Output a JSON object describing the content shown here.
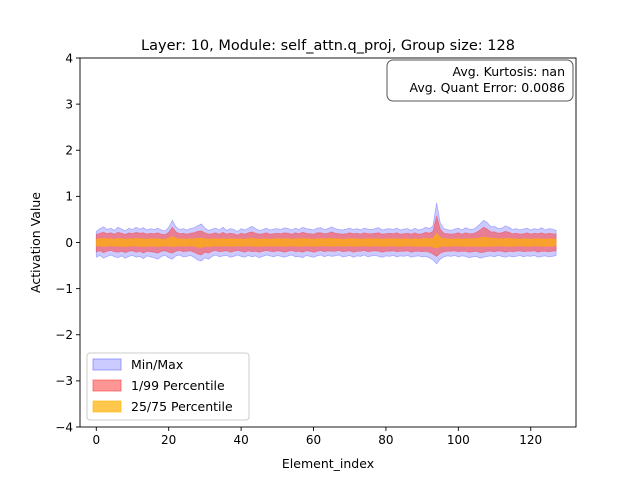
{
  "chart_data": {
    "type": "area",
    "title": "Layer: 10, Module: self_attn.q_proj,  Group size: 128",
    "xlabel": "Element_index",
    "ylabel": "Activation Value",
    "xlim": [
      -4.5,
      132.5
    ],
    "ylim": [
      -4,
      4
    ],
    "x_ticks": [
      0,
      20,
      40,
      60,
      80,
      100,
      120
    ],
    "y_ticks": [
      -4,
      -3,
      -2,
      -1,
      0,
      1,
      2,
      3,
      4
    ],
    "x_tick_labels": [
      "0",
      "20",
      "40",
      "60",
      "80",
      "100",
      "120"
    ],
    "y_tick_labels": [
      "−4",
      "−3",
      "−2",
      "−1",
      "0",
      "1",
      "2",
      "3",
      "4"
    ],
    "grid": false,
    "legend_position": "lower-left",
    "annotation": [
      "Avg. Kurtosis: nan",
      "Avg. Quant Error: 0.0086"
    ],
    "series": [
      {
        "name": "Min/Max",
        "color": "#6b6bff",
        "upper": [
          0.24,
          0.3,
          0.34,
          0.28,
          0.31,
          0.26,
          0.33,
          0.29,
          0.25,
          0.31,
          0.28,
          0.33,
          0.29,
          0.32,
          0.27,
          0.3,
          0.28,
          0.31,
          0.27,
          0.25,
          0.33,
          0.48,
          0.34,
          0.28,
          0.3,
          0.27,
          0.3,
          0.32,
          0.36,
          0.4,
          0.31,
          0.26,
          0.29,
          0.31,
          0.27,
          0.33,
          0.26,
          0.3,
          0.28,
          0.24,
          0.3,
          0.27,
          0.31,
          0.35,
          0.3,
          0.26,
          0.28,
          0.31,
          0.27,
          0.29,
          0.3,
          0.28,
          0.32,
          0.3,
          0.27,
          0.31,
          0.28,
          0.33,
          0.3,
          0.29,
          0.27,
          0.31,
          0.32,
          0.28,
          0.3,
          0.34,
          0.3,
          0.28,
          0.27,
          0.29,
          0.31,
          0.28,
          0.3,
          0.27,
          0.31,
          0.29,
          0.28,
          0.3,
          0.32,
          0.27,
          0.29,
          0.3,
          0.28,
          0.31,
          0.27,
          0.29,
          0.3,
          0.26,
          0.31,
          0.27,
          0.29,
          0.33,
          0.3,
          0.36,
          0.86,
          0.42,
          0.3,
          0.28,
          0.26,
          0.29,
          0.31,
          0.27,
          0.32,
          0.29,
          0.28,
          0.33,
          0.4,
          0.48,
          0.43,
          0.34,
          0.35,
          0.3,
          0.31,
          0.36,
          0.33,
          0.28,
          0.3,
          0.27,
          0.29,
          0.31,
          0.27,
          0.3,
          0.28,
          0.32,
          0.27,
          0.3,
          0.29,
          0.26
        ],
        "lower": [
          -0.32,
          -0.28,
          -0.34,
          -0.3,
          -0.27,
          -0.31,
          -0.33,
          -0.29,
          -0.34,
          -0.3,
          -0.28,
          -0.32,
          -0.3,
          -0.35,
          -0.29,
          -0.31,
          -0.33,
          -0.36,
          -0.3,
          -0.28,
          -0.33,
          -0.36,
          -0.29,
          -0.27,
          -0.31,
          -0.3,
          -0.28,
          -0.32,
          -0.38,
          -0.4,
          -0.33,
          -0.36,
          -0.3,
          -0.27,
          -0.31,
          -0.29,
          -0.28,
          -0.32,
          -0.3,
          -0.27,
          -0.3,
          -0.32,
          -0.28,
          -0.31,
          -0.29,
          -0.33,
          -0.3,
          -0.27,
          -0.29,
          -0.31,
          -0.28,
          -0.3,
          -0.32,
          -0.29,
          -0.27,
          -0.31,
          -0.3,
          -0.33,
          -0.28,
          -0.3,
          -0.32,
          -0.29,
          -0.27,
          -0.31,
          -0.28,
          -0.3,
          -0.29,
          -0.27,
          -0.31,
          -0.3,
          -0.28,
          -0.32,
          -0.29,
          -0.3,
          -0.27,
          -0.31,
          -0.29,
          -0.28,
          -0.3,
          -0.32,
          -0.29,
          -0.3,
          -0.28,
          -0.31,
          -0.29,
          -0.3,
          -0.28,
          -0.32,
          -0.3,
          -0.29,
          -0.31,
          -0.3,
          -0.33,
          -0.38,
          -0.46,
          -0.36,
          -0.31,
          -0.29,
          -0.3,
          -0.28,
          -0.31,
          -0.29,
          -0.3,
          -0.33,
          -0.31,
          -0.3,
          -0.34,
          -0.32,
          -0.3,
          -0.29,
          -0.31,
          -0.28,
          -0.3,
          -0.32,
          -0.29,
          -0.31,
          -0.3,
          -0.28,
          -0.31,
          -0.29,
          -0.3,
          -0.28,
          -0.32,
          -0.3,
          -0.29,
          -0.31,
          -0.3,
          -0.28
        ]
      },
      {
        "name": "1/99 Percentile",
        "color": "#ff4040",
        "upper": [
          0.17,
          0.2,
          0.22,
          0.19,
          0.21,
          0.18,
          0.22,
          0.2,
          0.17,
          0.21,
          0.19,
          0.22,
          0.2,
          0.21,
          0.18,
          0.2,
          0.19,
          0.21,
          0.18,
          0.17,
          0.22,
          0.33,
          0.23,
          0.19,
          0.2,
          0.18,
          0.2,
          0.21,
          0.24,
          0.25,
          0.21,
          0.18,
          0.19,
          0.21,
          0.18,
          0.22,
          0.18,
          0.2,
          0.19,
          0.16,
          0.2,
          0.18,
          0.21,
          0.23,
          0.2,
          0.18,
          0.19,
          0.21,
          0.18,
          0.19,
          0.2,
          0.19,
          0.21,
          0.2,
          0.18,
          0.21,
          0.19,
          0.22,
          0.2,
          0.19,
          0.18,
          0.21,
          0.21,
          0.19,
          0.2,
          0.23,
          0.2,
          0.19,
          0.18,
          0.19,
          0.21,
          0.19,
          0.2,
          0.18,
          0.21,
          0.19,
          0.19,
          0.2,
          0.21,
          0.18,
          0.19,
          0.2,
          0.19,
          0.21,
          0.18,
          0.19,
          0.2,
          0.18,
          0.21,
          0.18,
          0.19,
          0.22,
          0.2,
          0.24,
          0.58,
          0.29,
          0.2,
          0.19,
          0.18,
          0.19,
          0.21,
          0.18,
          0.21,
          0.19,
          0.19,
          0.22,
          0.27,
          0.33,
          0.29,
          0.23,
          0.23,
          0.2,
          0.21,
          0.24,
          0.22,
          0.19,
          0.2,
          0.18,
          0.19,
          0.21,
          0.18,
          0.2,
          0.19,
          0.21,
          0.18,
          0.2,
          0.19,
          0.18
        ],
        "lower": [
          -0.2,
          -0.18,
          -0.22,
          -0.19,
          -0.17,
          -0.2,
          -0.21,
          -0.19,
          -0.22,
          -0.19,
          -0.18,
          -0.21,
          -0.19,
          -0.23,
          -0.19,
          -0.2,
          -0.21,
          -0.23,
          -0.19,
          -0.18,
          -0.21,
          -0.23,
          -0.19,
          -0.17,
          -0.2,
          -0.19,
          -0.18,
          -0.21,
          -0.25,
          -0.27,
          -0.21,
          -0.23,
          -0.19,
          -0.17,
          -0.2,
          -0.19,
          -0.18,
          -0.21,
          -0.19,
          -0.17,
          -0.19,
          -0.21,
          -0.18,
          -0.2,
          -0.19,
          -0.21,
          -0.19,
          -0.17,
          -0.19,
          -0.2,
          -0.18,
          -0.19,
          -0.21,
          -0.19,
          -0.17,
          -0.2,
          -0.19,
          -0.21,
          -0.18,
          -0.19,
          -0.21,
          -0.19,
          -0.17,
          -0.2,
          -0.18,
          -0.19,
          -0.19,
          -0.17,
          -0.2,
          -0.19,
          -0.18,
          -0.21,
          -0.19,
          -0.19,
          -0.17,
          -0.2,
          -0.19,
          -0.18,
          -0.19,
          -0.21,
          -0.19,
          -0.19,
          -0.18,
          -0.2,
          -0.19,
          -0.19,
          -0.18,
          -0.21,
          -0.19,
          -0.19,
          -0.2,
          -0.19,
          -0.21,
          -0.25,
          -0.3,
          -0.23,
          -0.2,
          -0.19,
          -0.19,
          -0.18,
          -0.2,
          -0.19,
          -0.19,
          -0.21,
          -0.2,
          -0.19,
          -0.22,
          -0.21,
          -0.19,
          -0.19,
          -0.2,
          -0.18,
          -0.19,
          -0.21,
          -0.19,
          -0.2,
          -0.19,
          -0.18,
          -0.2,
          -0.19,
          -0.19,
          -0.18,
          -0.21,
          -0.19,
          -0.19,
          -0.2,
          -0.19,
          -0.18
        ]
      },
      {
        "name": "25/75 Percentile",
        "color": "#ffb000",
        "upper": [
          0.07,
          0.08,
          0.09,
          0.08,
          0.08,
          0.07,
          0.09,
          0.08,
          0.07,
          0.08,
          0.08,
          0.09,
          0.08,
          0.08,
          0.07,
          0.08,
          0.08,
          0.08,
          0.07,
          0.07,
          0.09,
          0.13,
          0.09,
          0.08,
          0.08,
          0.07,
          0.08,
          0.08,
          0.09,
          0.1,
          0.08,
          0.07,
          0.08,
          0.08,
          0.07,
          0.09,
          0.07,
          0.08,
          0.08,
          0.07,
          0.08,
          0.07,
          0.08,
          0.09,
          0.08,
          0.07,
          0.08,
          0.08,
          0.07,
          0.08,
          0.08,
          0.08,
          0.08,
          0.08,
          0.07,
          0.08,
          0.08,
          0.09,
          0.08,
          0.08,
          0.07,
          0.08,
          0.08,
          0.08,
          0.08,
          0.09,
          0.08,
          0.08,
          0.07,
          0.08,
          0.08,
          0.08,
          0.08,
          0.07,
          0.08,
          0.08,
          0.08,
          0.08,
          0.08,
          0.07,
          0.08,
          0.08,
          0.08,
          0.08,
          0.07,
          0.08,
          0.08,
          0.07,
          0.08,
          0.07,
          0.08,
          0.09,
          0.08,
          0.09,
          0.2,
          0.11,
          0.08,
          0.08,
          0.07,
          0.08,
          0.08,
          0.07,
          0.08,
          0.08,
          0.08,
          0.09,
          0.1,
          0.12,
          0.11,
          0.09,
          0.09,
          0.08,
          0.08,
          0.09,
          0.09,
          0.08,
          0.08,
          0.07,
          0.08,
          0.08,
          0.07,
          0.08,
          0.08,
          0.08,
          0.07,
          0.08,
          0.08,
          0.07
        ],
        "lower": [
          -0.08,
          -0.07,
          -0.09,
          -0.08,
          -0.07,
          -0.08,
          -0.08,
          -0.08,
          -0.09,
          -0.08,
          -0.07,
          -0.08,
          -0.08,
          -0.09,
          -0.08,
          -0.08,
          -0.08,
          -0.09,
          -0.08,
          -0.07,
          -0.08,
          -0.09,
          -0.08,
          -0.07,
          -0.08,
          -0.08,
          -0.07,
          -0.08,
          -0.1,
          -0.11,
          -0.08,
          -0.09,
          -0.08,
          -0.07,
          -0.08,
          -0.08,
          -0.07,
          -0.08,
          -0.08,
          -0.07,
          -0.08,
          -0.08,
          -0.07,
          -0.08,
          -0.08,
          -0.08,
          -0.08,
          -0.07,
          -0.08,
          -0.08,
          -0.07,
          -0.08,
          -0.08,
          -0.08,
          -0.07,
          -0.08,
          -0.08,
          -0.08,
          -0.07,
          -0.08,
          -0.08,
          -0.08,
          -0.07,
          -0.08,
          -0.07,
          -0.08,
          -0.08,
          -0.07,
          -0.08,
          -0.08,
          -0.07,
          -0.08,
          -0.08,
          -0.08,
          -0.07,
          -0.08,
          -0.08,
          -0.07,
          -0.08,
          -0.08,
          -0.08,
          -0.08,
          -0.07,
          -0.08,
          -0.08,
          -0.08,
          -0.07,
          -0.08,
          -0.08,
          -0.08,
          -0.08,
          -0.08,
          -0.08,
          -0.1,
          -0.12,
          -0.09,
          -0.08,
          -0.08,
          -0.08,
          -0.07,
          -0.08,
          -0.08,
          -0.08,
          -0.08,
          -0.08,
          -0.08,
          -0.09,
          -0.08,
          -0.08,
          -0.08,
          -0.08,
          -0.07,
          -0.08,
          -0.08,
          -0.08,
          -0.08,
          -0.08,
          -0.07,
          -0.08,
          -0.08,
          -0.08,
          -0.07,
          -0.08,
          -0.08,
          -0.08,
          -0.08,
          -0.08,
          -0.07
        ]
      }
    ]
  }
}
